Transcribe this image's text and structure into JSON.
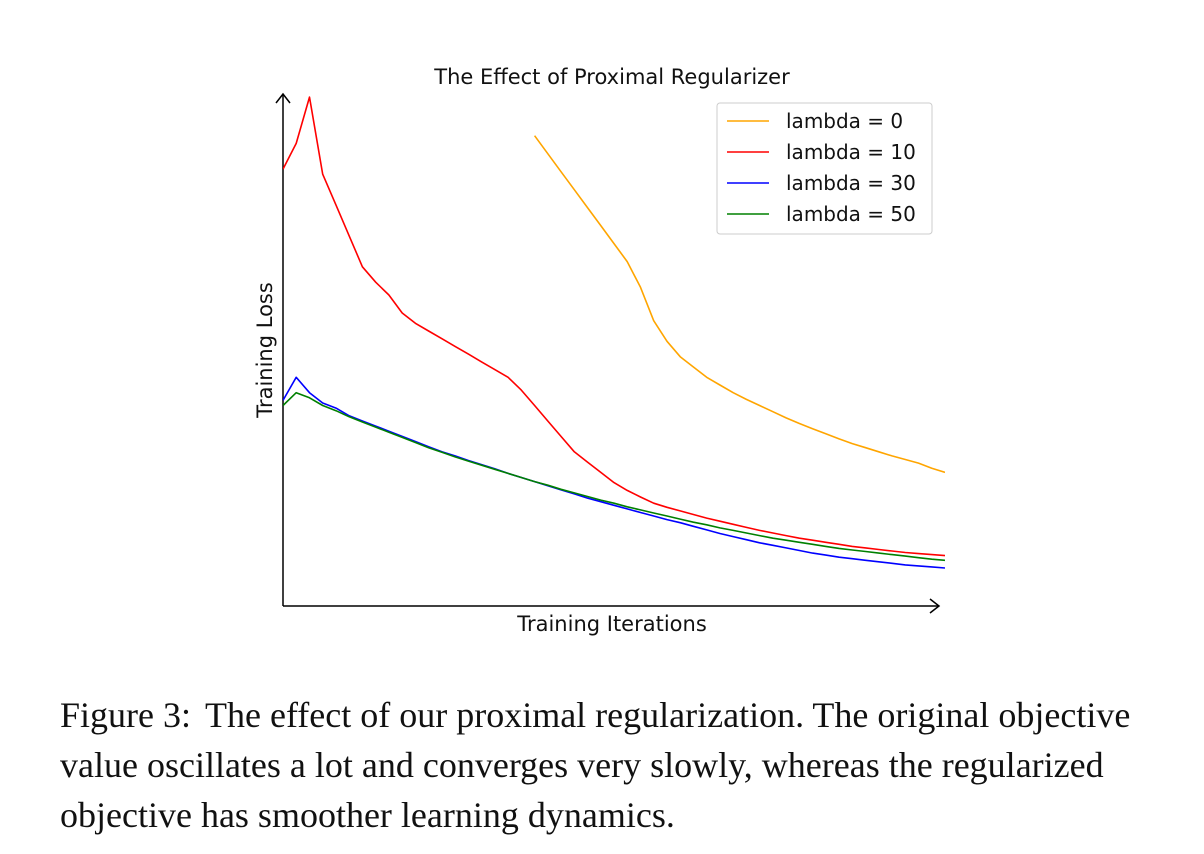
{
  "chart_data": {
    "type": "line",
    "title": "The Effect of Proximal Regularizer",
    "xlabel": "Training Iterations",
    "ylabel": "Training Loss",
    "xlim": [
      0,
      100
    ],
    "ylim": [
      0,
      100
    ],
    "ticks_shown": false,
    "grid": false,
    "legend_position": "top-right",
    "x": [
      0,
      2,
      4,
      6,
      8,
      10,
      12,
      14,
      16,
      18,
      20,
      22,
      24,
      26,
      28,
      30,
      32,
      34,
      36,
      38,
      40,
      42,
      44,
      46,
      48,
      50,
      52,
      54,
      56,
      58,
      60,
      62,
      64,
      66,
      68,
      70,
      72,
      74,
      76,
      78,
      80,
      82,
      84,
      86,
      88,
      90,
      92,
      94,
      96,
      98,
      100
    ],
    "series": [
      {
        "name": "lambda = 0",
        "color": "#ffa500",
        "values": [
          null,
          null,
          null,
          null,
          null,
          null,
          null,
          null,
          null,
          null,
          null,
          null,
          null,
          null,
          null,
          null,
          null,
          null,
          null,
          91.5,
          88.0,
          84.5,
          81.0,
          77.5,
          74.0,
          70.5,
          67.0,
          62.0,
          55.5,
          51.5,
          48.5,
          46.5,
          44.5,
          43.0,
          41.5,
          40.2,
          39.0,
          37.8,
          36.6,
          35.5,
          34.5,
          33.5,
          32.5,
          31.6,
          30.8,
          30.0,
          29.2,
          28.5,
          27.8,
          26.8,
          26.0
        ]
      },
      {
        "name": "lambda = 10",
        "color": "#ff0000",
        "values": [
          85.0,
          90.0,
          99.0,
          84.0,
          78.0,
          72.0,
          66.0,
          63.0,
          60.5,
          57.0,
          55.0,
          53.5,
          52.0,
          50.5,
          49.0,
          47.5,
          46.0,
          44.5,
          42.0,
          39.0,
          36.0,
          33.0,
          30.0,
          28.0,
          26.0,
          24.0,
          22.5,
          21.2,
          20.0,
          19.2,
          18.5,
          17.8,
          17.1,
          16.5,
          15.9,
          15.3,
          14.7,
          14.2,
          13.7,
          13.2,
          12.8,
          12.4,
          12.0,
          11.6,
          11.3,
          11.0,
          10.7,
          10.4,
          10.2,
          10.0,
          9.8
        ]
      },
      {
        "name": "lambda = 30",
        "color": "#0000ff",
        "values": [
          40.0,
          44.5,
          41.5,
          39.5,
          38.5,
          37.0,
          36.0,
          35.0,
          34.0,
          33.0,
          32.0,
          31.0,
          30.0,
          29.2,
          28.3,
          27.5,
          26.7,
          25.8,
          25.0,
          24.2,
          23.4,
          22.6,
          21.8,
          21.0,
          20.3,
          19.6,
          18.9,
          18.2,
          17.5,
          16.8,
          16.2,
          15.5,
          14.8,
          14.1,
          13.5,
          12.9,
          12.3,
          11.8,
          11.3,
          10.8,
          10.3,
          9.9,
          9.5,
          9.2,
          8.9,
          8.6,
          8.3,
          8.0,
          7.8,
          7.6,
          7.4
        ]
      },
      {
        "name": "lambda = 50",
        "color": "#008000",
        "values": [
          39.0,
          41.5,
          40.5,
          39.0,
          38.0,
          36.8,
          35.8,
          34.8,
          33.8,
          32.8,
          31.8,
          30.8,
          29.9,
          29.0,
          28.2,
          27.4,
          26.6,
          25.8,
          25.0,
          24.2,
          23.5,
          22.7,
          22.0,
          21.3,
          20.6,
          20.0,
          19.3,
          18.7,
          18.1,
          17.5,
          16.9,
          16.3,
          15.8,
          15.2,
          14.7,
          14.2,
          13.7,
          13.2,
          12.8,
          12.4,
          12.0,
          11.6,
          11.2,
          10.9,
          10.6,
          10.3,
          10.0,
          9.7,
          9.4,
          9.1,
          8.9
        ]
      }
    ]
  },
  "caption": {
    "label": "Figure 3:",
    "text": "The effect of our proximal regularization. The original objective value oscillates a lot and converges very slowly, whereas the regularized objective has smoother learning dynamics."
  }
}
